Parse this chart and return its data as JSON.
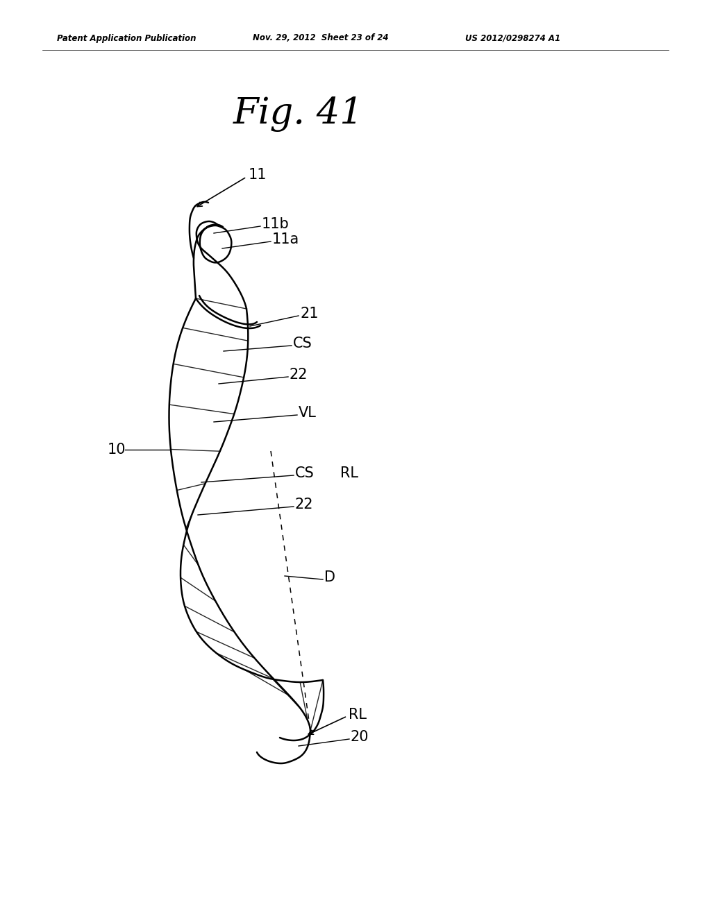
{
  "title": "Fig. 41",
  "header_left": "Patent Application Publication",
  "header_mid": "Nov. 29, 2012  Sheet 23 of 24",
  "header_right": "US 2012/0298274 A1",
  "background_color": "#ffffff",
  "line_color": "#000000",
  "fig_width": 10.24,
  "fig_height": 13.2,
  "dpi": 100
}
